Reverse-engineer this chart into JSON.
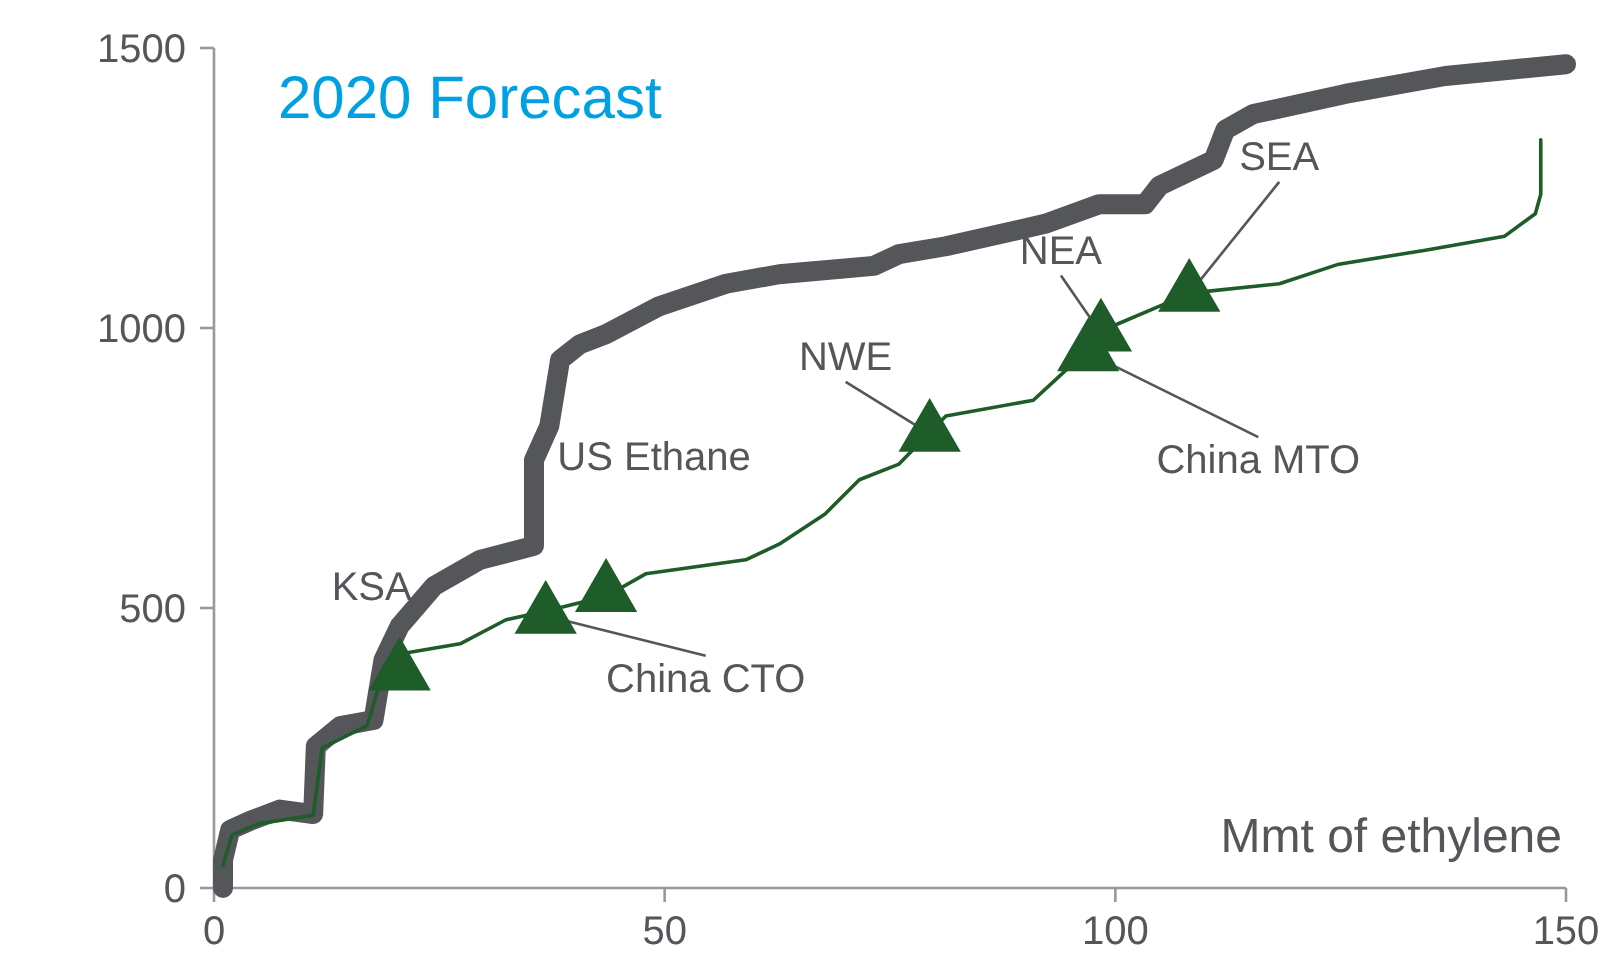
{
  "chart_data": {
    "type": "line",
    "title": "2020 Forecast",
    "xlabel": "Mmt of ethylene",
    "xlim": [
      0,
      150
    ],
    "xticks": [
      0,
      50,
      100,
      150
    ],
    "ylim": [
      0,
      1500
    ],
    "yticks": [
      0,
      500,
      1000,
      1500
    ],
    "grid": false,
    "series": [
      {
        "color": "#55565a",
        "x": [
          1,
          1,
          1.8,
          4,
          7.3,
          11,
          11.3,
          14,
          17.7,
          18.8,
          20.6,
          24.4,
          29.5,
          35.5,
          35.5,
          37.2,
          38.4,
          40.6,
          43.5,
          49.4,
          56.8,
          62.7,
          73.2,
          76,
          81.2,
          92.2,
          98.2,
          103.3,
          104.9,
          110.9,
          112.2,
          115.3,
          125.5,
          136.6,
          150
        ],
        "values": [
          0,
          50,
          104,
          120,
          140,
          132,
          253,
          289,
          300,
          407,
          468,
          539,
          586,
          611,
          764,
          825,
          943,
          971,
          989,
          1039,
          1079,
          1096,
          1111,
          1132,
          1146,
          1186,
          1221,
          1221,
          1254,
          1300,
          1354,
          1382,
          1418,
          1450,
          1471
        ]
      },
      {
        "color": "#1e5c2a",
        "x": [
          1,
          2,
          5,
          11,
          12,
          17,
          19,
          20.6,
          27.3,
          32.4,
          37.2,
          43.5,
          47.9,
          59,
          62.7,
          67.8,
          71.6,
          76,
          81.2,
          90.9,
          93.8,
          99.8,
          105.5,
          109.3,
          118.2,
          124.8,
          134.4,
          143.2,
          146.6,
          147.2,
          147.2
        ],
        "values": [
          40,
          95,
          115,
          130,
          250,
          290,
          400,
          418,
          436,
          479,
          496,
          521,
          561,
          586,
          614,
          668,
          729,
          757,
          843,
          871,
          914,
          1004,
          1043,
          1064,
          1079,
          1114,
          1139,
          1164,
          1204,
          1239,
          1336
        ]
      },
      {
        "type": "scatter",
        "color": "#1e5c2a",
        "marker": "triangle",
        "x": [
          20.6,
          36.8,
          43.5,
          79.4,
          97.0,
          98.4,
          108.2
        ],
        "values": [
          385,
          486,
          525,
          811,
          955,
          990,
          1061
        ]
      }
    ],
    "annotations": [
      {
        "text": "KSA",
        "x": 20.6,
        "y": 385
      },
      {
        "text": "US Ethane",
        "x": 43.5,
        "y": 525
      },
      {
        "text": "China CTO",
        "x": 36.8,
        "y": 486
      },
      {
        "text": "NWE",
        "x": 79.4,
        "y": 811
      },
      {
        "text": "NEA",
        "x": 98.4,
        "y": 990
      },
      {
        "text": "SEA",
        "x": 108.2,
        "y": 1061
      },
      {
        "text": "China MTO",
        "x": 97.0,
        "y": 955
      }
    ]
  }
}
